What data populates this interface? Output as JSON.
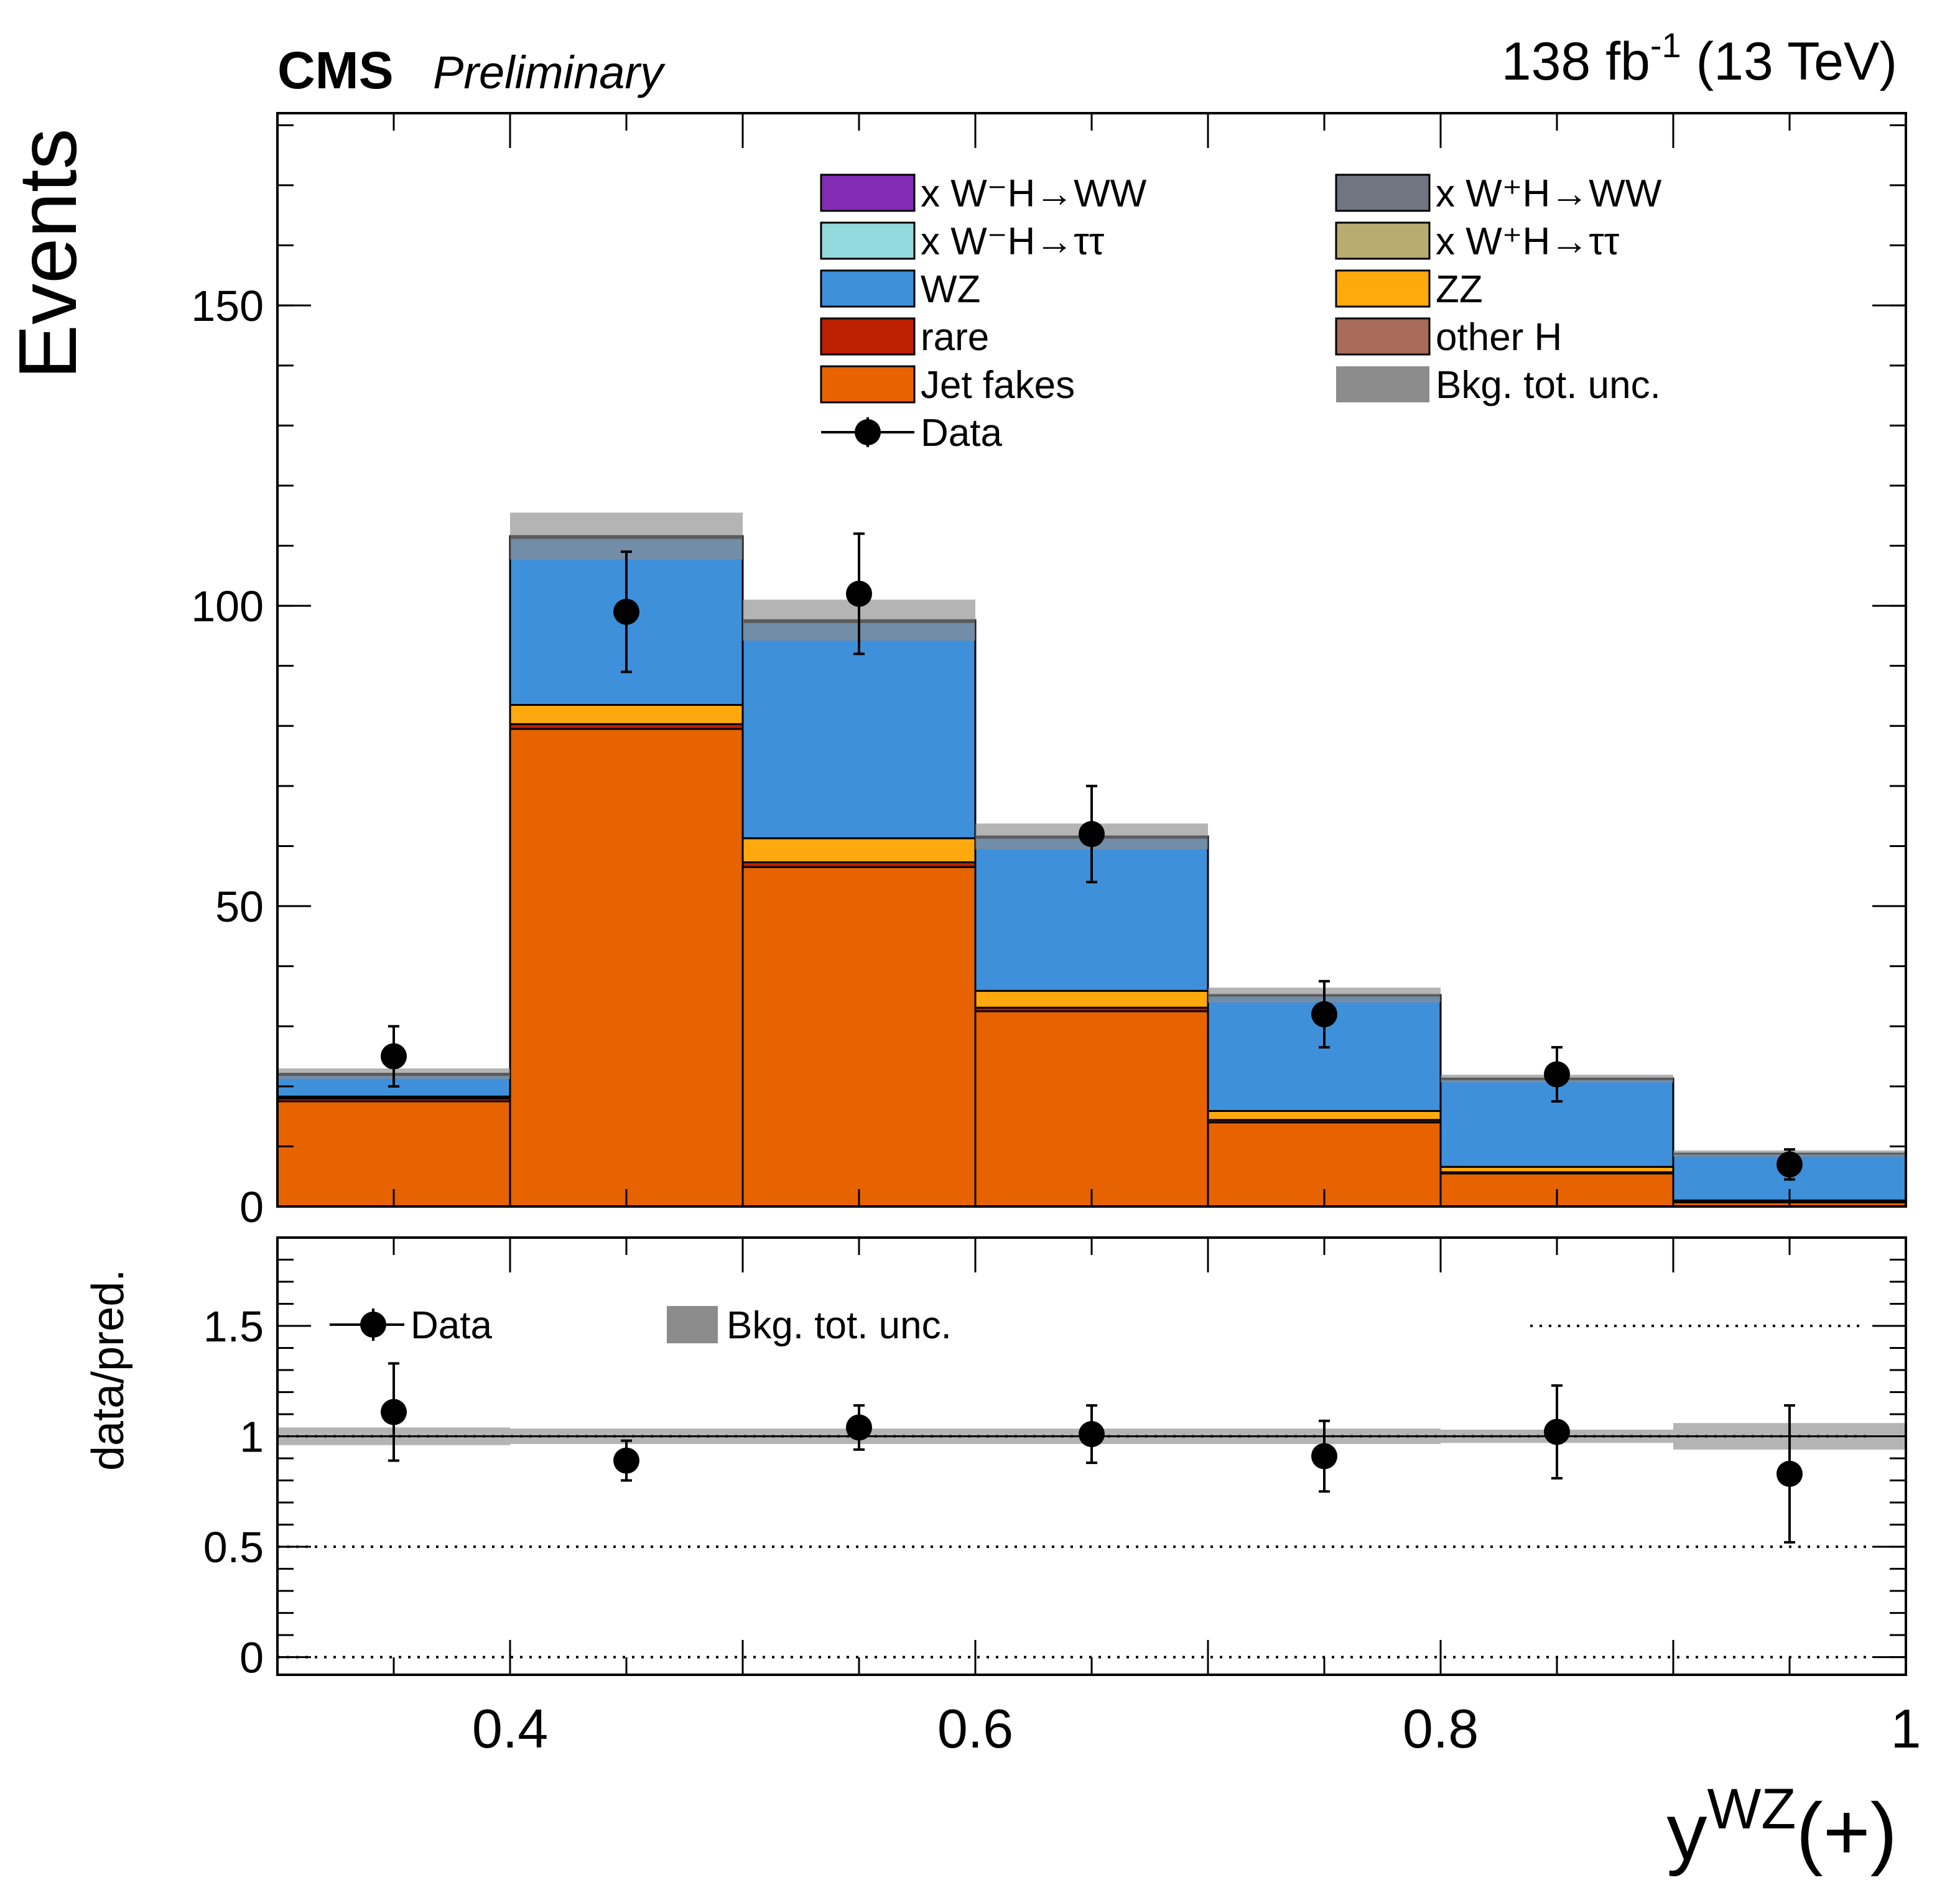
{
  "header": {
    "experiment": "CMS",
    "status": "Preliminary",
    "lumi_value": "138 fb",
    "lumi_exp": "-1",
    "energy": " (13 TeV)"
  },
  "chart_data": {
    "type": "bar",
    "subtype": "stacked-histogram-with-ratio",
    "xlabel": "y",
    "xlabel_sup": "WZ",
    "xlabel_suffix": "(+)",
    "ylabel": "Events",
    "ratio_ylabel": "data/pred.",
    "xlim": [
      0.3,
      1.0
    ],
    "ylim": [
      0,
      182
    ],
    "ratio_ylim": [
      -0.08,
      1.9
    ],
    "bin_edges": [
      0.3,
      0.4,
      0.5,
      0.6,
      0.7,
      0.8,
      0.9,
      1.0
    ],
    "x_ticks": [
      {
        "value": 0.4,
        "label": "0.4"
      },
      {
        "value": 0.6,
        "label": "0.6"
      },
      {
        "value": 0.8,
        "label": "0.8"
      },
      {
        "value": 1.0,
        "label": "1"
      }
    ],
    "y_ticks": [
      {
        "value": 0,
        "label": "0"
      },
      {
        "value": 50,
        "label": "50"
      },
      {
        "value": 100,
        "label": "100"
      },
      {
        "value": 150,
        "label": "150"
      }
    ],
    "ratio_y_ticks": [
      {
        "value": 0,
        "label": "0"
      },
      {
        "value": 0.5,
        "label": "0.5"
      },
      {
        "value": 1,
        "label": "1"
      },
      {
        "value": 1.5,
        "label": "1.5"
      }
    ],
    "ratio_reference_lines": [
      0,
      0.5,
      1,
      1.5
    ],
    "series": [
      {
        "name": "Jet fakes",
        "color": "#e76300",
        "values": [
          17.5,
          79.5,
          56.5,
          32.5,
          14.0,
          5.5,
          0.7
        ]
      },
      {
        "name": "rare",
        "color": "#bd1f01",
        "values": [
          0.5,
          0.8,
          0.8,
          0.6,
          0.4,
          0.2,
          0.1
        ]
      },
      {
        "name": "ZZ",
        "color": "#ffa90e",
        "values": [
          0.3,
          3.2,
          4.0,
          2.8,
          1.5,
          0.9,
          0.2
        ]
      },
      {
        "name": "WZ",
        "color": "#3f90da",
        "values": [
          3.6,
          27.8,
          36.0,
          25.5,
          19.2,
          14.6,
          7.8
        ]
      },
      {
        "name": "x W⁻H→ττ",
        "color": "#92dadd",
        "values": [
          0.0,
          0.0,
          0.0,
          0.0,
          0.0,
          0.0,
          0.0
        ]
      },
      {
        "name": "x W⁺H→ττ",
        "color": "#b9ac70",
        "values": [
          0.0,
          0.0,
          0.0,
          0.0,
          0.0,
          0.0,
          0.0
        ]
      },
      {
        "name": "x W⁻H→WW",
        "color": "#832db6",
        "values": [
          0.0,
          0.0,
          0.0,
          0.0,
          0.0,
          0.0,
          0.0
        ]
      },
      {
        "name": "x W⁺H→WW",
        "color": "#717581",
        "values": [
          0.2,
          0.3,
          0.3,
          0.2,
          0.1,
          0.1,
          0.0
        ]
      },
      {
        "name": "other H",
        "color": "#a96b59",
        "values": [
          0.0,
          0.0,
          0.0,
          0.0,
          0.0,
          0.0,
          0.0
        ]
      }
    ],
    "bkg_tot_unc": {
      "name": "Bkg. tot. unc.",
      "color": "#8c8c8c",
      "rel_unc": [
        0.04,
        0.035,
        0.035,
        0.035,
        0.035,
        0.03,
        0.06
      ]
    },
    "data": {
      "name": "Data",
      "x": [
        0.35,
        0.45,
        0.55,
        0.65,
        0.75,
        0.85,
        0.95
      ],
      "values": [
        25,
        99,
        102,
        62,
        32,
        22,
        7
      ],
      "err_low": [
        5,
        10,
        10,
        8,
        5.5,
        4.5,
        2.5
      ],
      "err_high": [
        5,
        10,
        10,
        8,
        5.5,
        4.5,
        2.5
      ]
    },
    "ratio": {
      "values": [
        1.11,
        0.89,
        1.04,
        1.01,
        0.91,
        1.02,
        0.83
      ],
      "err_low": [
        0.22,
        0.09,
        0.1,
        0.13,
        0.16,
        0.21,
        0.31
      ],
      "err_high": [
        0.22,
        0.09,
        0.1,
        0.13,
        0.16,
        0.21,
        0.31
      ]
    },
    "legend": [
      {
        "label": "x W⁻H→WW",
        "series": "x W⁻H→WW",
        "column": 0
      },
      {
        "label": "x W⁻H→ττ",
        "series": "x W⁻H→ττ",
        "column": 0
      },
      {
        "label": "WZ",
        "series": "WZ",
        "column": 0
      },
      {
        "label": "rare",
        "series": "rare",
        "column": 0
      },
      {
        "label": "Jet fakes",
        "series": "Jet fakes",
        "column": 0
      },
      {
        "label": "Data",
        "series": "Data",
        "column": 0
      },
      {
        "label": "x W⁺H→WW",
        "series": "x W⁺H→WW",
        "column": 1
      },
      {
        "label": "x W⁺H→ττ",
        "series": "x W⁺H→ττ",
        "column": 1
      },
      {
        "label": "ZZ",
        "series": "ZZ",
        "column": 1
      },
      {
        "label": "other H",
        "series": "other H",
        "column": 1
      },
      {
        "label": "Bkg. tot. unc.",
        "series": "Bkg. tot. unc.",
        "column": 1
      }
    ],
    "ratio_legend": [
      {
        "label": "Data",
        "series": "Data"
      },
      {
        "label": "Bkg. tot. unc.",
        "series": "Bkg. tot. unc."
      }
    ]
  }
}
